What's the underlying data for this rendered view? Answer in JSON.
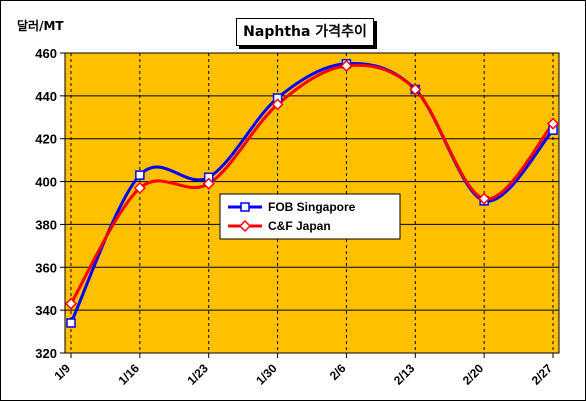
{
  "chart_data": {
    "type": "line",
    "title": "Naphtha 가격추이",
    "ylabel": "달러/MT",
    "xlabel": "",
    "categories": [
      "1/9",
      "1/16",
      "1/23",
      "1/30",
      "2/6",
      "2/13",
      "2/20",
      "2/27"
    ],
    "ylim": [
      320,
      460
    ],
    "yticks": [
      320,
      340,
      360,
      380,
      400,
      420,
      440,
      460
    ],
    "grid": true,
    "legend_position": "center",
    "series": [
      {
        "name": "FOB Singapore",
        "color": "#0000ff",
        "marker": "square",
        "values": [
          334,
          403,
          402,
          439,
          455,
          443,
          391,
          424
        ]
      },
      {
        "name": "C&F Japan",
        "color": "#ff0000",
        "marker": "diamond",
        "values": [
          343,
          397,
          399,
          436,
          454,
          443,
          392,
          427
        ]
      }
    ],
    "plot_background": "#ffc000"
  }
}
